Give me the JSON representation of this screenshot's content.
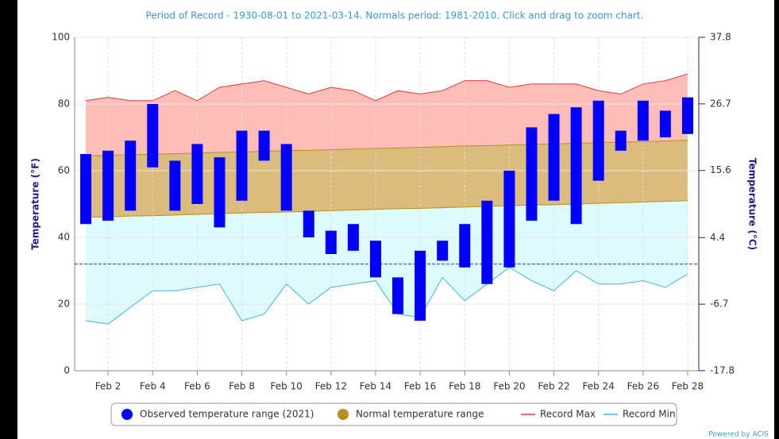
{
  "chart_data": {
    "type": "temperature_range",
    "title": "Period of Record - 1930-08-01 to 2021-03-14. Normals period: 1981-2010. Click and drag to zoom chart.",
    "ylabel": "Temperature (°F)",
    "y2label": "Temperature (°C)",
    "credit": "Powered by ACIS",
    "categories": [
      null,
      "Feb 2",
      null,
      "Feb 4",
      null,
      "Feb 6",
      null,
      "Feb 8",
      null,
      "Feb 10",
      null,
      "Feb 12",
      null,
      "Feb 14",
      null,
      "Feb 16",
      null,
      "Feb 18",
      null,
      "Feb 20",
      null,
      "Feb 22",
      null,
      "Feb 24",
      null,
      "Feb 26",
      null,
      "Feb 28"
    ],
    "ylim": [
      0,
      100
    ],
    "yticks": [
      0,
      20,
      40,
      60,
      80,
      100
    ],
    "y2lim": [
      -17.8,
      37.8
    ],
    "y2ticks": [
      -17.8,
      -6.7,
      4.4,
      15.6,
      26.7,
      37.8
    ],
    "reference_line": 32,
    "grid": true,
    "series": [
      {
        "name": "Observed temperature range (2021)",
        "color": "#0000ff",
        "low": [
          44,
          45,
          48,
          61,
          48,
          50,
          43,
          51,
          63,
          48,
          40,
          35,
          36,
          28,
          17,
          15,
          33,
          31,
          26,
          31,
          45,
          51,
          44,
          57,
          66,
          69,
          70,
          71
        ],
        "high": [
          65,
          66,
          69,
          80,
          63,
          68,
          64,
          72,
          72,
          68,
          48,
          42,
          44,
          39,
          28,
          36,
          39,
          44,
          51,
          60,
          73,
          77,
          79,
          81,
          72,
          81,
          78,
          82
        ]
      },
      {
        "name": "Normal temperature range",
        "color": "#b8901e",
        "low": [
          46.0,
          46.2,
          46.4,
          46.5,
          46.7,
          46.9,
          47.1,
          47.3,
          47.5,
          47.6,
          47.8,
          48.0,
          48.2,
          48.4,
          48.6,
          48.7,
          48.9,
          49.1,
          49.3,
          49.5,
          49.7,
          49.8,
          50.0,
          50.2,
          50.4,
          50.6,
          50.8,
          51.0
        ],
        "high": [
          64.4,
          64.6,
          64.8,
          64.9,
          65.1,
          65.3,
          65.5,
          65.6,
          65.8,
          66.0,
          66.1,
          66.3,
          66.5,
          66.7,
          66.8,
          67.0,
          67.2,
          67.4,
          67.5,
          67.7,
          67.9,
          68.0,
          68.2,
          68.4,
          68.6,
          68.7,
          68.9,
          69.1
        ]
      },
      {
        "name": "Record Max",
        "color": "#e03c3c",
        "values": [
          81,
          82,
          81,
          81,
          84,
          81,
          85,
          86,
          87,
          85,
          83,
          85,
          84,
          81,
          84,
          83,
          84,
          87,
          87,
          85,
          86,
          86,
          86,
          84,
          83,
          86,
          87,
          89
        ]
      },
      {
        "name": "Record Min",
        "color": "#45b4e6",
        "values": [
          15,
          14,
          19,
          24,
          24,
          25,
          26,
          15,
          17,
          26,
          20,
          25,
          26,
          27,
          17,
          16,
          28,
          21,
          26,
          31,
          27,
          24,
          30,
          26,
          26,
          27,
          25,
          29
        ]
      }
    ]
  }
}
